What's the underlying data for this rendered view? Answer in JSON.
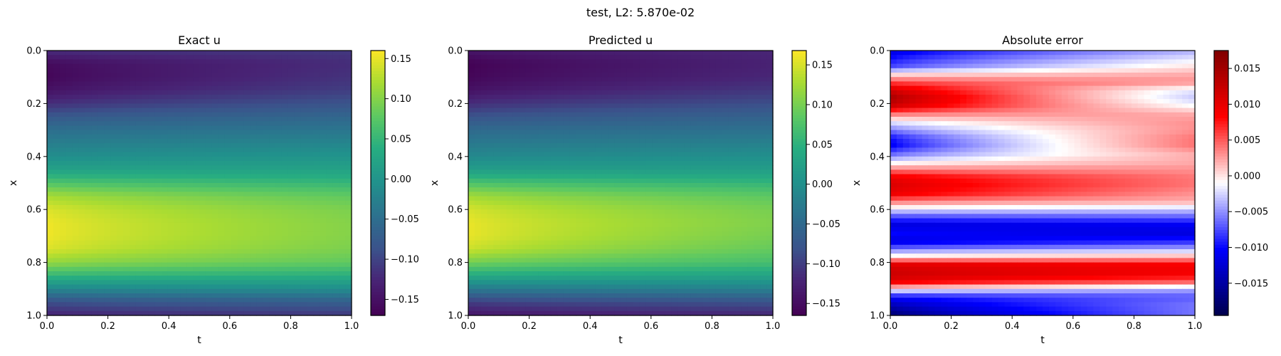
{
  "figure": {
    "suptitle": "test, L2: 5.870e-02"
  },
  "chart_data": [
    {
      "type": "heatmap",
      "title": "Exact u",
      "xlabel": "t",
      "ylabel": "x",
      "xlim": [
        0.0,
        1.0
      ],
      "ylim": [
        1.0,
        0.0
      ],
      "x_ticks": [
        "0.0",
        "0.2",
        "0.4",
        "0.6",
        "0.8",
        "1.0"
      ],
      "y_ticks": [
        "0.0",
        "0.2",
        "0.4",
        "0.6",
        "0.8",
        "1.0"
      ],
      "colormap": "viridis",
      "colorbar": {
        "range": [
          -0.17,
          0.16
        ],
        "ticks": [
          0.15,
          0.1,
          0.05,
          0.0,
          -0.05,
          -0.1,
          -0.15
        ],
        "tick_labels": [
          "0.15",
          "0.10",
          "0.05",
          "0.00",
          "−0.05",
          "−0.10",
          "−0.15"
        ]
      },
      "profile_x": [
        0.0,
        0.05,
        0.1,
        0.15,
        0.2,
        0.25,
        0.3,
        0.35,
        0.4,
        0.45,
        0.5,
        0.55,
        0.6,
        0.65,
        0.7,
        0.75,
        0.8,
        0.85,
        0.9,
        0.95,
        1.0
      ],
      "profile_t0": [
        -0.12,
        -0.16,
        -0.165,
        -0.15,
        -0.12,
        -0.08,
        -0.05,
        -0.03,
        -0.01,
        0.02,
        0.07,
        0.12,
        0.145,
        0.155,
        0.155,
        0.145,
        0.11,
        0.05,
        -0.02,
        -0.09,
        -0.13
      ],
      "profile_t1": [
        -0.11,
        -0.12,
        -0.115,
        -0.105,
        -0.085,
        -0.06,
        -0.04,
        -0.02,
        0.0,
        0.02,
        0.05,
        0.08,
        0.095,
        0.1,
        0.1,
        0.095,
        0.08,
        0.04,
        -0.01,
        -0.07,
        -0.11
      ]
    },
    {
      "type": "heatmap",
      "title": "Predicted u",
      "xlabel": "t",
      "ylabel": "x",
      "xlim": [
        0.0,
        1.0
      ],
      "ylim": [
        1.0,
        0.0
      ],
      "x_ticks": [
        "0.0",
        "0.2",
        "0.4",
        "0.6",
        "0.8",
        "1.0"
      ],
      "y_ticks": [
        "0.0",
        "0.2",
        "0.4",
        "0.6",
        "0.8",
        "1.0"
      ],
      "colormap": "viridis",
      "colorbar": {
        "range": [
          -0.165,
          0.168
        ],
        "ticks": [
          0.15,
          0.1,
          0.05,
          0.0,
          -0.05,
          -0.1,
          -0.15
        ],
        "tick_labels": [
          "0.15",
          "0.10",
          "0.05",
          "0.00",
          "−0.05",
          "−0.10",
          "−0.15"
        ]
      },
      "profile_x": [
        0.0,
        0.05,
        0.1,
        0.15,
        0.2,
        0.25,
        0.3,
        0.35,
        0.4,
        0.45,
        0.5,
        0.55,
        0.6,
        0.65,
        0.7,
        0.75,
        0.8,
        0.85,
        0.9,
        0.95,
        1.0
      ],
      "profile_t0": [
        -0.14,
        -0.165,
        -0.16,
        -0.145,
        -0.115,
        -0.08,
        -0.05,
        -0.03,
        -0.01,
        0.02,
        0.075,
        0.125,
        0.15,
        0.16,
        0.16,
        0.145,
        0.1,
        0.04,
        -0.03,
        -0.1,
        -0.14
      ],
      "profile_t1": [
        -0.12,
        -0.125,
        -0.12,
        -0.105,
        -0.085,
        -0.06,
        -0.04,
        -0.02,
        0.0,
        0.02,
        0.055,
        0.085,
        0.1,
        0.105,
        0.1,
        0.09,
        0.07,
        0.03,
        -0.02,
        -0.08,
        -0.12
      ]
    },
    {
      "type": "heatmap",
      "title": "Absolute error",
      "xlabel": "t",
      "ylabel": "x",
      "xlim": [
        0.0,
        1.0
      ],
      "ylim": [
        1.0,
        0.0
      ],
      "x_ticks": [
        "0.0",
        "0.2",
        "0.4",
        "0.6",
        "0.8",
        "1.0"
      ],
      "y_ticks": [
        "0.0",
        "0.2",
        "0.4",
        "0.6",
        "0.8",
        "1.0"
      ],
      "colormap": "seismic",
      "colorbar": {
        "range": [
          -0.0195,
          0.0175
        ],
        "ticks": [
          0.015,
          0.01,
          0.005,
          0.0,
          -0.005,
          -0.01,
          -0.015
        ],
        "tick_labels": [
          "0.015",
          "0.010",
          "0.005",
          "0.000",
          "−0.005",
          "−0.010",
          "−0.015"
        ]
      },
      "profile_x": [
        0.0,
        0.03,
        0.06,
        0.09,
        0.12,
        0.15,
        0.18,
        0.21,
        0.24,
        0.27,
        0.3,
        0.33,
        0.36,
        0.39,
        0.42,
        0.45,
        0.48,
        0.51,
        0.54,
        0.57,
        0.6,
        0.63,
        0.66,
        0.69,
        0.72,
        0.75,
        0.78,
        0.81,
        0.84,
        0.87,
        0.9,
        0.93,
        0.96,
        0.99,
        1.0
      ],
      "profile_t0": [
        -0.012,
        -0.01,
        -0.008,
        0.0,
        0.006,
        0.012,
        0.015,
        0.012,
        0.004,
        -0.002,
        -0.006,
        -0.01,
        -0.011,
        -0.007,
        -0.002,
        0.004,
        0.01,
        0.011,
        0.01,
        0.004,
        -0.002,
        -0.008,
        -0.012,
        -0.01,
        -0.012,
        -0.006,
        0.0,
        0.011,
        0.012,
        0.011,
        0.0,
        -0.01,
        -0.014,
        -0.017,
        -0.018
      ],
      "profile_t1": [
        -0.004,
        -0.002,
        0.0,
        0.002,
        0.003,
        -0.002,
        -0.003,
        -0.001,
        0.002,
        0.003,
        0.003,
        0.004,
        0.004,
        0.002,
        0.002,
        0.003,
        0.004,
        0.004,
        0.003,
        0.002,
        -0.003,
        -0.007,
        -0.011,
        -0.012,
        -0.009,
        -0.004,
        0.002,
        0.009,
        0.009,
        0.006,
        -0.004,
        -0.007,
        -0.006,
        -0.006,
        -0.006
      ]
    }
  ]
}
